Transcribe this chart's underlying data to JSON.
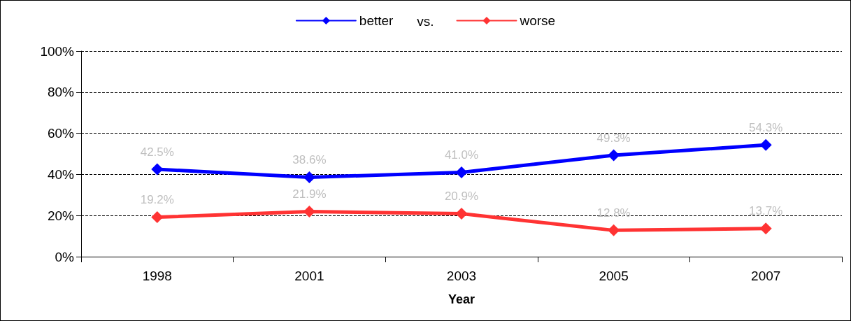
{
  "chart_data": {
    "type": "line",
    "xlabel": "Year",
    "categories": [
      "1998",
      "2001",
      "2003",
      "2005",
      "2007"
    ],
    "series": [
      {
        "name": "better",
        "color": "#0000ff",
        "values": [
          42.5,
          38.6,
          41.0,
          49.3,
          54.3
        ],
        "value_labels": [
          "42.5%",
          "38.6%",
          "41.0%",
          "49.3%",
          "54.3%"
        ]
      },
      {
        "name": "worse",
        "color": "#ff3333",
        "values": [
          19.2,
          21.9,
          20.9,
          12.8,
          13.7
        ],
        "value_labels": [
          "19.2%",
          "21.9%",
          "20.9%",
          "12.8%",
          "13.7%"
        ]
      }
    ],
    "ylim": [
      0,
      100
    ],
    "yticks": [
      {
        "value": 0,
        "label": "0%"
      },
      {
        "value": 20,
        "label": "20%"
      },
      {
        "value": 40,
        "label": "40%"
      },
      {
        "value": 60,
        "label": "60%"
      },
      {
        "value": 80,
        "label": "80%"
      },
      {
        "value": 100,
        "label": "100%"
      }
    ],
    "annotations": [
      "vs."
    ],
    "grid": "y",
    "legend": "top",
    "marker": "diamond",
    "line_style": "solid"
  }
}
